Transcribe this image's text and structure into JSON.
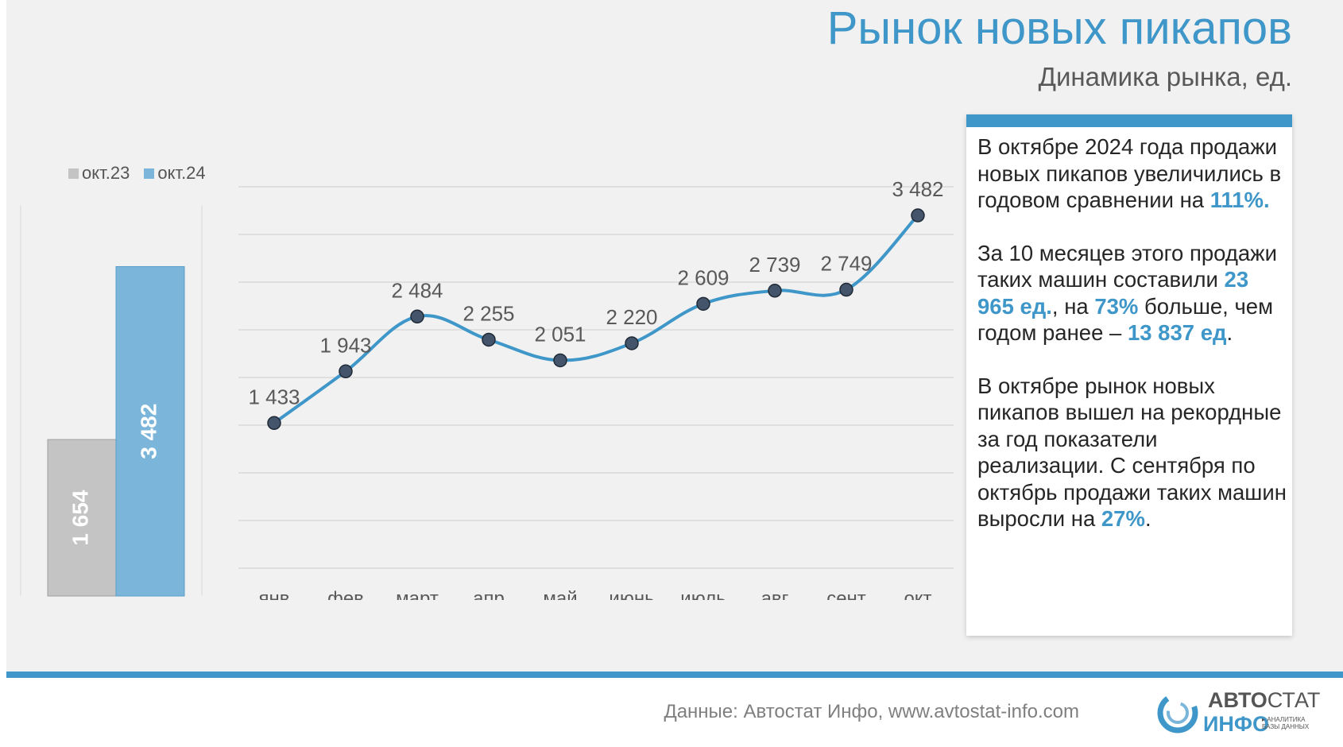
{
  "header": {
    "title": "Рынок новых пикапов",
    "subtitle": "Динамика рынка, ед."
  },
  "legend": [
    {
      "label": "окт.23",
      "color": "#c4c4c4"
    },
    {
      "label": "окт.24",
      "color": "#7bb6da"
    }
  ],
  "info": {
    "p1": {
      "text": "В октябре 2024 года продажи новых пикапов увеличились в годовом сравнении на ",
      "hl": "111%."
    },
    "p2": {
      "t1": "За 10 месяцев этого продажи таких машин составили ",
      "hl1": "23 965 ед.",
      "t2": ", на ",
      "hl2": "73%",
      "t3": " больше, чем годом ранее – ",
      "hl3": "13 837  ед",
      "t4": "."
    },
    "p3": {
      "text": "В октябре рынок новых пикапов вышел на рекордные за год показатели реализации. С сентября по октябрь продажи таких машин выросли на  ",
      "hl": "27%",
      "tail": "."
    }
  },
  "footer": {
    "source": "Данные: Автостат Инфо, www.avtostat-info.com"
  },
  "logo": {
    "top_bold": "АВТО",
    "top_thin": "СТАТ",
    "bottom": "ИНФО",
    "tag_1": "▸ АНАЛИТИКА",
    "tag_2": "БАЗЫ ДАННЫХ"
  },
  "colors": {
    "accent": "#3f97c9",
    "bar_prev": "#c4c4c4",
    "bar_curr": "#7bb6da",
    "marker": "#44546a"
  },
  "chart_data": [
    {
      "type": "bar",
      "categories": [
        "окт.23",
        "окт.24"
      ],
      "values": [
        1654,
        3482
      ],
      "labels": [
        "1 654",
        "3 482"
      ],
      "ylim": [
        0,
        4200
      ]
    },
    {
      "type": "line",
      "categories": [
        "янв",
        "фев",
        "март",
        "апр",
        "май",
        "июнь",
        "июль",
        "авг",
        "сент",
        "окт"
      ],
      "values": [
        1433,
        1943,
        2484,
        2255,
        2051,
        2220,
        2609,
        2739,
        2749,
        3482
      ],
      "labels": [
        "1 433",
        "1 943",
        "2 484",
        "2 255",
        "2 051",
        "2 220",
        "2 609",
        "2 739",
        "2 749",
        "3 482"
      ],
      "ylim": [
        0,
        4000
      ],
      "grid": true
    }
  ]
}
